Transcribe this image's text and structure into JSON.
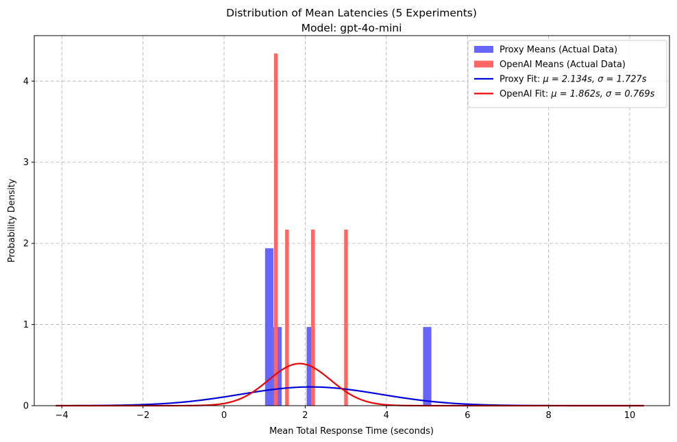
{
  "chart_data": {
    "type": "bar",
    "title": "Distribution of Mean Latencies (5 Experiments)",
    "subtitle": "Model: gpt-4o-mini",
    "xlabel": "Mean Total Response Time (seconds)",
    "ylabel": "Probability Density",
    "xlim": [
      -4.68,
      10.98
    ],
    "ylim": [
      0,
      4.56
    ],
    "xticks": [
      -4,
      -2,
      0,
      2,
      4,
      6,
      8,
      10
    ],
    "yticks": [
      0,
      1,
      2,
      3,
      4
    ],
    "xtick_labels": [
      "−4",
      "−2",
      "0",
      "2",
      "4",
      "6",
      "8",
      "10"
    ],
    "ytick_labels": [
      "0",
      "1",
      "2",
      "3",
      "4"
    ],
    "grid": true,
    "legend_position": "top-right",
    "series": [
      {
        "name": "Proxy Means (Actual Data)",
        "kind": "histogram",
        "color": "#6666ff",
        "bin_width": 0.205,
        "bins": [
          {
            "x0": 1.01,
            "value": 1.94
          },
          {
            "x0": 1.215,
            "value": 0.97
          },
          {
            "x0": 2.035,
            "value": 0.97
          },
          {
            "x0": 4.905,
            "value": 0.97
          }
        ]
      },
      {
        "name": "OpenAI Means (Actual Data)",
        "kind": "histogram",
        "color": "#ff6666",
        "bin_width": 0.092,
        "bins": [
          {
            "x0": 1.23,
            "value": 4.34
          },
          {
            "x0": 1.505,
            "value": 2.17
          },
          {
            "x0": 2.145,
            "value": 2.17
          },
          {
            "x0": 2.96,
            "value": 2.17
          }
        ]
      },
      {
        "name": "Proxy Fit: μ = 2.134s, σ = 1.727s",
        "kind": "normal_fit",
        "color": "#0000dd",
        "mu": 2.134,
        "sigma": 1.727,
        "x_range": [
          -4.15,
          10.35
        ]
      },
      {
        "name": "OpenAI Fit: μ = 1.862s, σ = 0.769s",
        "kind": "normal_fit",
        "color": "#ee0000",
        "mu": 1.862,
        "sigma": 0.769,
        "x_range": [
          -4.15,
          10.35
        ]
      }
    ],
    "legend": [
      {
        "label": "Proxy Means (Actual Data)",
        "kind": "patch",
        "color": "#6666ff"
      },
      {
        "label": "OpenAI Means (Actual Data)",
        "kind": "patch",
        "color": "#ff6666"
      },
      {
        "label": "Proxy Fit: ",
        "math": "μ = 2.134s, σ = 1.727s",
        "kind": "line",
        "color": "#0000dd"
      },
      {
        "label": "OpenAI Fit: ",
        "math": "μ = 1.862s, σ = 0.769s",
        "kind": "line",
        "color": "#ee0000"
      }
    ]
  }
}
